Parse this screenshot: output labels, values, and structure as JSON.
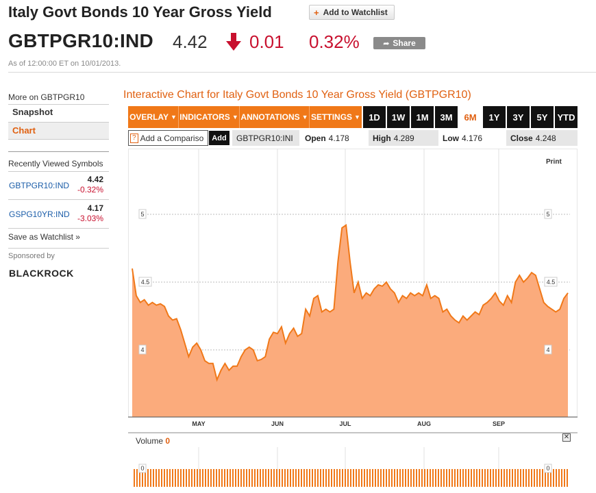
{
  "header": {
    "title": "Italy Govt Bonds 10 Year Gross Yield",
    "add_watchlist": "Add to Watchlist",
    "ticker": "GBTPGR10:IND",
    "price": "4.42",
    "change": "0.01",
    "change_pct": "0.32%",
    "share": "Share",
    "as_of": "As of 12:00:00 ET on 10/01/2013."
  },
  "sidebar": {
    "more_on": "More on GBTPGR10",
    "snapshot": "Snapshot",
    "chart": "Chart",
    "recent_title": "Recently Viewed Symbols",
    "symbols": [
      {
        "name": "GBTPGR10:IND",
        "value": "4.42",
        "change": "-0.32%"
      },
      {
        "name": "GSPG10YR:IND",
        "value": "4.17",
        "change": "-3.03%"
      }
    ],
    "save_watchlist": "Save as Watchlist »",
    "sponsored": "Sponsored by",
    "sponsor_logo": "BLACKROCK"
  },
  "chart_panel": {
    "title": "Interactive Chart for Italy Govt Bonds 10 Year Gross Yield (GBTPGR10)",
    "menus": [
      "OVERLAY",
      "INDICATORS",
      "ANNOTATIONS",
      "SETTINGS"
    ],
    "ranges": [
      "1D",
      "1W",
      "1M",
      "3M",
      "6M",
      "1Y",
      "3Y",
      "5Y",
      "YTD"
    ],
    "active_range": "6M",
    "compare_placeholder": "Add a Compariso",
    "compare_help": "?",
    "add": "Add",
    "symbol": "GBTPGR10:INI",
    "open_label": "Open",
    "open": "4.178",
    "high_label": "High",
    "high": "4.289",
    "low_label": "Low",
    "low": "4.176",
    "close_label": "Close",
    "close": "4.248",
    "print": "Print",
    "volume_label": "Volume",
    "volume_value": "0",
    "close_icon": "close-x-icon"
  },
  "colors": {
    "accent": "#e06010",
    "down": "#c8102e",
    "fill": "#fbab7c",
    "line": "#f07818"
  },
  "chart_data": {
    "type": "area",
    "xlabel": "",
    "ylabel": "",
    "ylim": [
      3.5,
      5.5
    ],
    "y_ticks": [
      "5",
      "4.5",
      "4"
    ],
    "x_ticks": [
      "MAY",
      "JUN",
      "JUL",
      "AUG",
      "SEP"
    ],
    "grid": true,
    "values": [
      4.6,
      4.4,
      4.35,
      4.37,
      4.33,
      4.35,
      4.33,
      4.34,
      4.32,
      4.25,
      4.22,
      4.23,
      4.15,
      4.05,
      3.95,
      4.02,
      4.05,
      4.0,
      3.92,
      3.9,
      3.9,
      3.78,
      3.85,
      3.9,
      3.85,
      3.88,
      3.88,
      3.95,
      4.0,
      4.02,
      4.0,
      3.92,
      3.93,
      3.95,
      4.08,
      4.13,
      4.12,
      4.17,
      4.05,
      4.12,
      4.16,
      4.1,
      4.12,
      4.3,
      4.25,
      4.38,
      4.4,
      4.28,
      4.3,
      4.28,
      4.3,
      4.65,
      4.9,
      4.92,
      4.65,
      4.42,
      4.5,
      4.38,
      4.42,
      4.4,
      4.45,
      4.48,
      4.47,
      4.5,
      4.45,
      4.42,
      4.35,
      4.4,
      4.38,
      4.42,
      4.4,
      4.42,
      4.4,
      4.48,
      4.38,
      4.4,
      4.38,
      4.28,
      4.3,
      4.25,
      4.22,
      4.2,
      4.25,
      4.22,
      4.25,
      4.28,
      4.26,
      4.33,
      4.35,
      4.38,
      4.42,
      4.36,
      4.33,
      4.4,
      4.35,
      4.5,
      4.55,
      4.5,
      4.53,
      4.57,
      4.55,
      4.45,
      4.35,
      4.32,
      4.3,
      4.28,
      4.3,
      4.38,
      4.42
    ]
  }
}
